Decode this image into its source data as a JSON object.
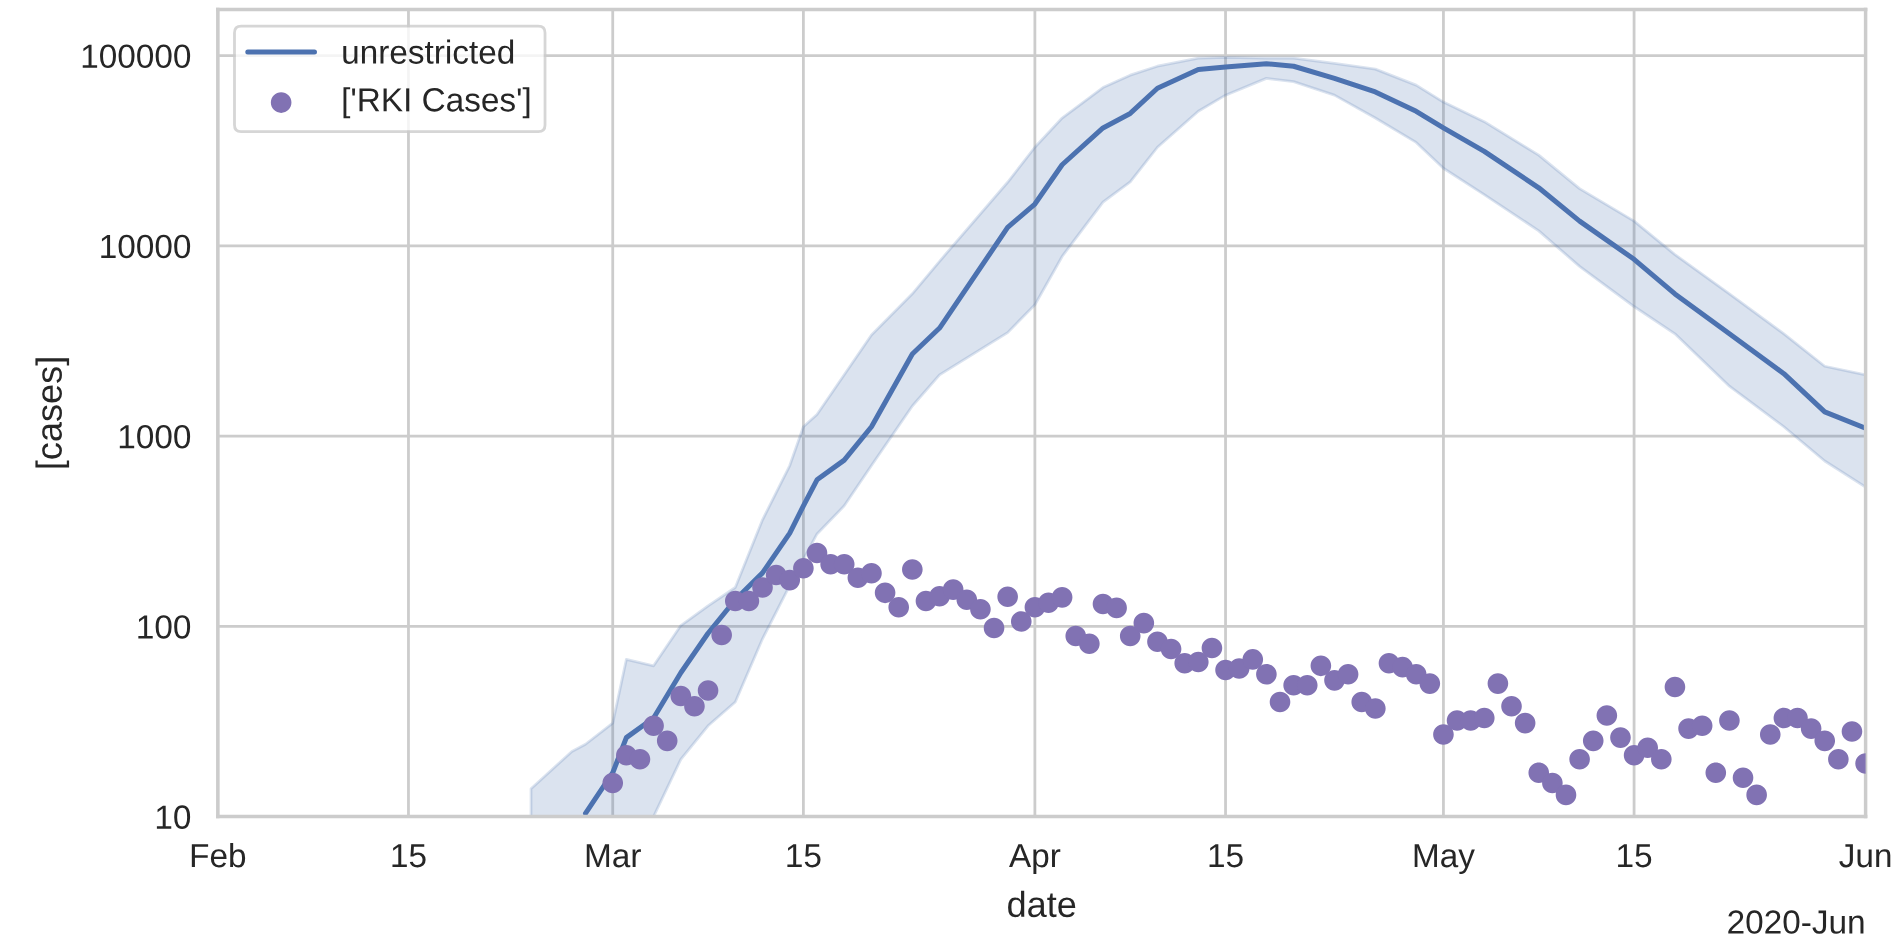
{
  "chart_data": {
    "type": "line",
    "xlabel": "date",
    "ylabel": "[cases]",
    "log": "y",
    "xlim": [
      "2020-02-01",
      "2020-06-01"
    ],
    "xticks": [
      {
        "value": "2020-02-01",
        "label": "Feb"
      },
      {
        "value": "2020-02-15",
        "label": "15"
      },
      {
        "value": "2020-03-01",
        "label": "Mar"
      },
      {
        "value": "2020-03-15",
        "label": "15"
      },
      {
        "value": "2020-04-01",
        "label": "Apr"
      },
      {
        "value": "2020-04-15",
        "label": "15"
      },
      {
        "value": "2020-05-01",
        "label": "May"
      },
      {
        "value": "2020-05-15",
        "label": "15"
      },
      {
        "value": "2020-06-01",
        "label": "Jun"
      }
    ],
    "ylim": [
      10,
      175000
    ],
    "yticks": [
      10,
      100,
      1000,
      10000,
      100000
    ],
    "grid": true,
    "legend": "top left",
    "annotations": [
      "2020-Jun"
    ],
    "series": [
      {
        "name": "unrestricted",
        "color": "#4c72b0",
        "marker": "none",
        "line_style": "solid",
        "x": [
          "2020-02-24",
          "2020-02-27",
          "2020-02-28",
          "2020-03-01",
          "2020-03-02",
          "2020-03-04",
          "2020-03-06",
          "2020-03-08",
          "2020-03-10",
          "2020-03-12",
          "2020-03-14",
          "2020-03-15",
          "2020-03-16",
          "2020-03-18",
          "2020-03-20",
          "2020-03-23",
          "2020-03-25",
          "2020-03-30",
          "2020-04-01",
          "2020-04-03",
          "2020-04-06",
          "2020-04-08",
          "2020-04-10",
          "2020-04-13",
          "2020-04-15",
          "2020-04-18",
          "2020-04-20",
          "2020-04-23",
          "2020-04-26",
          "2020-04-29",
          "2020-05-01",
          "2020-05-04",
          "2020-05-08",
          "2020-05-11",
          "2020-05-15",
          "2020-05-18",
          "2020-05-22",
          "2020-05-26",
          "2020-05-29",
          "2020-06-01"
        ],
        "values": [
          null,
          null,
          10.4,
          17,
          26,
          33,
          57,
          92,
          138,
          191,
          309,
          430,
          589,
          748,
          1120,
          2700,
          3700,
          12500,
          16600,
          26700,
          41700,
          49700,
          67400,
          84500,
          87200,
          90800,
          88000,
          76000,
          64500,
          51000,
          41700,
          31400,
          20200,
          13500,
          8500,
          5590,
          3450,
          2130,
          1340,
          1100
        ],
        "lower": [
          10,
          10,
          10,
          10,
          10,
          10,
          20,
          30,
          40,
          86,
          164,
          225,
          306,
          430,
          700,
          1440,
          2100,
          3500,
          4900,
          8800,
          17000,
          21700,
          33000,
          51000,
          62000,
          76000,
          73000,
          62000,
          47000,
          35000,
          25600,
          18600,
          12000,
          7800,
          4800,
          3450,
          1830,
          1120,
          740,
          540
        ],
        "upper": [
          14,
          22,
          24,
          31,
          67,
          62,
          101,
          128,
          160,
          363,
          700,
          1120,
          1300,
          2100,
          3400,
          5600,
          8300,
          21600,
          33000,
          47000,
          68000,
          79000,
          88000,
          97000,
          98000,
          97000,
          97000,
          91000,
          85000,
          70000,
          57000,
          45000,
          30000,
          20000,
          13500,
          9000,
          5600,
          3450,
          2330,
          2100
        ]
      },
      {
        "name": "['RKI Cases']",
        "type": "scatter",
        "color": "#8172b3",
        "marker": "circle",
        "x": [
          "2020-03-01",
          "2020-03-02",
          "2020-03-03",
          "2020-03-04",
          "2020-03-05",
          "2020-03-06",
          "2020-03-07",
          "2020-03-08",
          "2020-03-09",
          "2020-03-10",
          "2020-03-11",
          "2020-03-12",
          "2020-03-13",
          "2020-03-14",
          "2020-03-15",
          "2020-03-16",
          "2020-03-17",
          "2020-03-18",
          "2020-03-19",
          "2020-03-20",
          "2020-03-21",
          "2020-03-22",
          "2020-03-23",
          "2020-03-24",
          "2020-03-25",
          "2020-03-26",
          "2020-03-27",
          "2020-03-28",
          "2020-03-29",
          "2020-03-30",
          "2020-03-31",
          "2020-04-01",
          "2020-04-02",
          "2020-04-03",
          "2020-04-04",
          "2020-04-05",
          "2020-04-06",
          "2020-04-07",
          "2020-04-08",
          "2020-04-09",
          "2020-04-10",
          "2020-04-11",
          "2020-04-12",
          "2020-04-13",
          "2020-04-14",
          "2020-04-15",
          "2020-04-16",
          "2020-04-17",
          "2020-04-18",
          "2020-04-19",
          "2020-04-20",
          "2020-04-21",
          "2020-04-22",
          "2020-04-23",
          "2020-04-24",
          "2020-04-25",
          "2020-04-26",
          "2020-04-27",
          "2020-04-28",
          "2020-04-29",
          "2020-04-30",
          "2020-05-01",
          "2020-05-02",
          "2020-05-03",
          "2020-05-04",
          "2020-05-05",
          "2020-05-06",
          "2020-05-07",
          "2020-05-08",
          "2020-05-09",
          "2020-05-10",
          "2020-05-11",
          "2020-05-12",
          "2020-05-13",
          "2020-05-14",
          "2020-05-15",
          "2020-05-16",
          "2020-05-17",
          "2020-05-18",
          "2020-05-19",
          "2020-05-20",
          "2020-05-21",
          "2020-05-22",
          "2020-05-23",
          "2020-05-24",
          "2020-05-25",
          "2020-05-26",
          "2020-05-27",
          "2020-05-28",
          "2020-05-29",
          "2020-05-30",
          "2020-05-31",
          "2020-06-01"
        ],
        "values": [
          15,
          21,
          20,
          30,
          25,
          43,
          38,
          46,
          90,
          136,
          136,
          160,
          186,
          175,
          202,
          243,
          212,
          212,
          180,
          190,
          150,
          126,
          199,
          136,
          144,
          156,
          138,
          123,
          98,
          143,
          106,
          126,
          133,
          142,
          89,
          81,
          131,
          125,
          89,
          104,
          83,
          76,
          64,
          65,
          77,
          59,
          60,
          67,
          56,
          40,
          49,
          49,
          62,
          52,
          56,
          40,
          37,
          64,
          61,
          56,
          50,
          27,
          32,
          32,
          33,
          50,
          38,
          31,
          17,
          15,
          13,
          20,
          25,
          34,
          26,
          21,
          23,
          20,
          48,
          29,
          30,
          17,
          32,
          16,
          13,
          27,
          33,
          33,
          29,
          25,
          20,
          28,
          19
        ]
      }
    ]
  }
}
